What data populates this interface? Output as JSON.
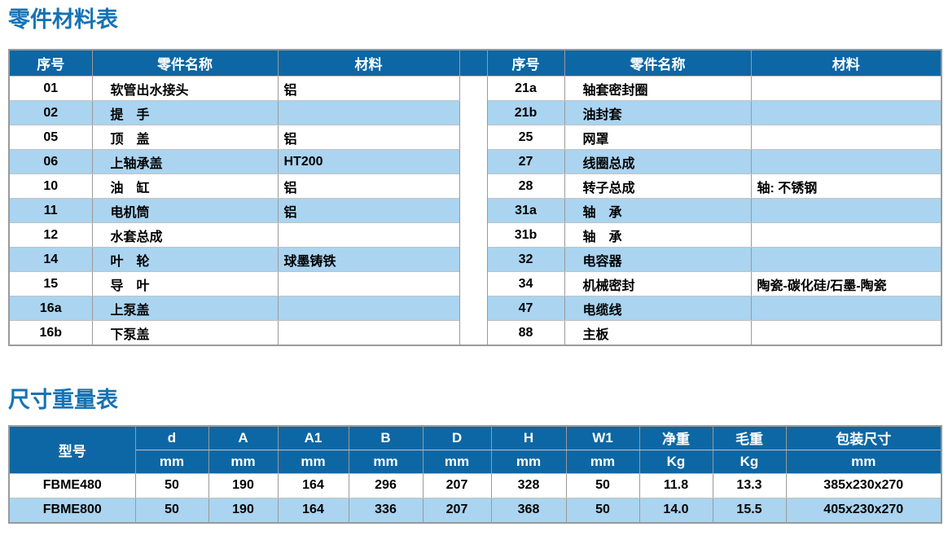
{
  "colors": {
    "title": "#1573b4",
    "header_bg": "#0d67a4",
    "header_text": "#ffffff",
    "alt_row_bg": "#aad4f0",
    "body_text": "#000000",
    "border": "#9a9a9a",
    "page_bg": "#ffffff"
  },
  "parts_table": {
    "title": "零件材料表",
    "columns": [
      "序号",
      "零件名称",
      "材料"
    ],
    "left_rows": [
      [
        "01",
        "软管出水接头",
        "铝"
      ],
      [
        "02",
        "提　手",
        ""
      ],
      [
        "05",
        "顶　盖",
        "铝"
      ],
      [
        "06",
        "上轴承盖",
        "HT200"
      ],
      [
        "10",
        "油　缸",
        "铝"
      ],
      [
        "11",
        "电机筒",
        "铝"
      ],
      [
        "12",
        "水套总成",
        ""
      ],
      [
        "14",
        "叶　轮",
        "球墨铸铁"
      ],
      [
        "15",
        "导　叶",
        ""
      ],
      [
        "16a",
        "上泵盖",
        ""
      ],
      [
        "16b",
        "下泵盖",
        ""
      ]
    ],
    "right_rows": [
      [
        "21a",
        "轴套密封圈",
        ""
      ],
      [
        "21b",
        "油封套",
        ""
      ],
      [
        "25",
        "网罩",
        ""
      ],
      [
        "27",
        "线圈总成",
        ""
      ],
      [
        "28",
        "转子总成",
        "轴: 不锈钢"
      ],
      [
        "31a",
        "轴　承",
        ""
      ],
      [
        "31b",
        "轴　承",
        ""
      ],
      [
        "32",
        "电容器",
        ""
      ],
      [
        "34",
        "机械密封",
        "陶瓷-碳化硅/石墨-陶瓷"
      ],
      [
        "47",
        "电缆线",
        ""
      ],
      [
        "88",
        "主板",
        ""
      ]
    ]
  },
  "dimensions_table": {
    "title": "尺寸重量表",
    "header_row1": [
      "型号",
      "d",
      "A",
      "A1",
      "B",
      "D",
      "H",
      "W1",
      "净重",
      "毛重",
      "包装尺寸"
    ],
    "header_row2": [
      "mm",
      "mm",
      "mm",
      "mm",
      "mm",
      "mm",
      "mm",
      "Kg",
      "Kg",
      "mm"
    ],
    "rows": [
      [
        "FBME480",
        "50",
        "190",
        "164",
        "296",
        "207",
        "328",
        "50",
        "11.8",
        "13.3",
        "385x230x270"
      ],
      [
        "FBME800",
        "50",
        "190",
        "164",
        "336",
        "207",
        "368",
        "50",
        "14.0",
        "15.5",
        "405x230x270"
      ]
    ]
  }
}
